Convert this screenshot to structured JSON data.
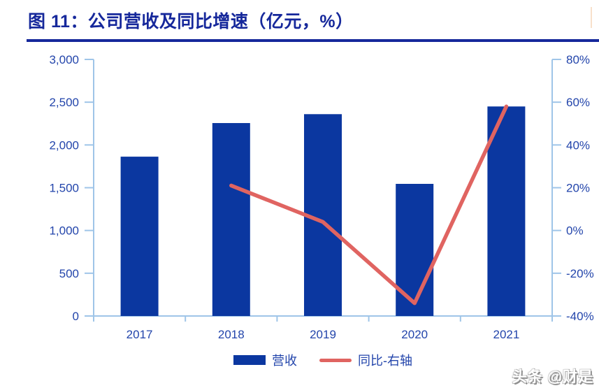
{
  "header": {
    "title": "图 11：公司营收及同比增速（亿元，%）",
    "accent_color": "#16289B"
  },
  "chart_data": {
    "type": "bar",
    "title": "公司营收及同比增速（亿元，%）",
    "categories": [
      "2017",
      "2018",
      "2019",
      "2020",
      "2021"
    ],
    "series": [
      {
        "name": "营收",
        "type": "bar",
        "axis": "left",
        "color": "#0B37A0",
        "values": [
          1863,
          2256,
          2360,
          1545,
          2450
        ]
      },
      {
        "name": "同比-右轴",
        "type": "line",
        "axis": "right",
        "color": "#E06461",
        "values": [
          null,
          21,
          4,
          -34,
          58
        ]
      }
    ],
    "left_axis": {
      "min": 0,
      "max": 3000,
      "step": 500,
      "tick_labels": [
        "0",
        "500",
        "1,000",
        "1,500",
        "2,000",
        "2,500",
        "3,000"
      ]
    },
    "right_axis": {
      "min": -40,
      "max": 80,
      "step": 20,
      "tick_labels": [
        "-40%",
        "-20%",
        "0%",
        "20%",
        "40%",
        "60%",
        "80%"
      ]
    },
    "grid": false,
    "legend_position": "bottom",
    "axis_line_color": "#9FC5E8",
    "tick_label_color": "#2345AB"
  },
  "legend": {
    "items": [
      {
        "label": "营收",
        "swatch": "bar",
        "color": "#0B37A0"
      },
      {
        "label": "同比-右轴",
        "swatch": "line",
        "color": "#E06461"
      }
    ]
  },
  "watermark": {
    "text": "头条 @财是"
  }
}
